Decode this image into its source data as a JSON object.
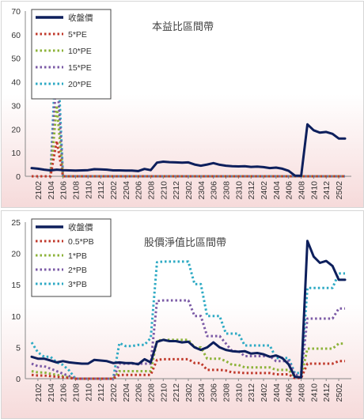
{
  "charts": [
    {
      "type": "line",
      "title": "本益比區間帶",
      "ylim": [
        0,
        70
      ],
      "yticks": [
        0,
        10,
        20,
        30,
        40,
        50,
        60,
        70
      ],
      "xtick_labels": [
        "2102",
        "2104",
        "2106",
        "2108",
        "2110",
        "2112",
        "2202",
        "2204",
        "2206",
        "2208",
        "2210",
        "2212",
        "2302",
        "2304",
        "2306",
        "2308",
        "2310",
        "2312",
        "2402",
        "2404",
        "2406",
        "2408",
        "2410",
        "2412",
        "2502"
      ],
      "legend": [
        "收盤價",
        "5*PE",
        "10*PE",
        "15*PE",
        "20*PE"
      ],
      "colors": [
        "#0d1f5c",
        "#c0392b",
        "#8db33a",
        "#7b5aa6",
        "#2eaac4"
      ],
      "series": [
        {
          "name": "收盤價",
          "values": [
            3.5,
            3.2,
            2.8,
            2.5,
            2.8,
            2.6,
            2.5,
            2.4,
            2.5,
            2.6,
            3.0,
            2.9,
            2.8,
            2.5,
            2.5,
            2.4,
            2.4,
            2.2,
            3.1,
            2.6,
            5.8,
            6.2,
            6.0,
            5.9,
            5.8,
            5.9,
            5.0,
            4.5,
            5.0,
            5.6,
            4.9,
            4.5,
            4.3,
            4.2,
            4.3,
            4.0,
            4.1,
            3.9,
            3.5,
            3.7,
            3.2,
            2.3,
            0.3,
            0.2,
            22.0,
            19.5,
            18.5,
            18.8,
            18.0,
            16.0,
            16.0
          ]
        },
        {
          "name": "5*PE",
          "values": [
            0,
            0,
            0,
            0,
            15,
            0,
            0,
            0,
            0,
            0,
            0,
            0,
            0,
            0,
            0,
            0,
            0,
            0,
            0,
            0,
            0,
            0,
            0,
            0,
            0,
            0,
            0,
            0,
            0,
            0,
            0,
            0,
            0,
            0,
            0,
            0,
            0,
            0,
            0,
            0,
            0,
            0,
            0,
            0,
            0,
            0,
            0,
            0,
            0,
            0,
            0
          ]
        },
        {
          "name": "10*PE",
          "values": [
            0,
            0,
            0,
            0,
            30,
            0,
            0,
            0,
            0,
            0,
            0,
            0,
            0,
            0,
            0,
            0,
            0,
            0,
            0,
            0,
            0,
            0,
            0,
            0,
            0,
            0,
            0,
            0,
            0,
            0,
            0,
            0,
            0,
            0,
            0,
            0,
            0,
            0,
            0,
            0,
            0,
            0,
            0,
            0,
            0,
            0,
            0,
            0,
            0,
            0,
            0
          ]
        },
        {
          "name": "15*PE",
          "values": [
            0,
            0,
            0,
            0,
            45,
            0,
            0,
            0,
            0,
            0,
            0,
            0,
            0,
            0,
            0,
            0,
            0,
            0,
            0,
            0,
            0,
            0,
            0,
            0,
            0,
            0,
            0,
            0,
            0,
            0,
            0,
            0,
            0,
            0,
            0,
            0,
            0,
            0,
            0,
            0,
            0,
            0,
            0,
            0,
            0,
            0,
            0,
            0,
            0,
            0,
            0
          ]
        },
        {
          "name": "20*PE",
          "values": [
            0,
            0,
            0,
            0,
            60,
            0,
            0,
            0,
            0,
            0,
            0,
            0,
            0,
            0,
            0,
            0,
            0,
            0,
            0,
            0,
            0,
            0,
            0,
            0,
            0,
            0,
            0,
            0,
            0,
            0,
            0,
            0,
            0,
            0,
            0,
            0,
            0,
            0,
            0,
            0,
            0,
            0,
            0,
            0,
            0,
            0,
            0,
            0,
            0,
            0,
            0
          ]
        }
      ]
    },
    {
      "type": "line",
      "title": "股價淨值比區間帶",
      "ylim": [
        0,
        25
      ],
      "yticks": [
        0,
        5,
        10,
        15,
        20,
        25
      ],
      "xtick_labels": [
        "2102",
        "2104",
        "2106",
        "2108",
        "2110",
        "2112",
        "2202",
        "2204",
        "2206",
        "2208",
        "2210",
        "2212",
        "2302",
        "2304",
        "2306",
        "2308",
        "2310",
        "2312",
        "2402",
        "2404",
        "2406",
        "2408",
        "2410",
        "2412",
        "2502"
      ],
      "legend": [
        "收盤價",
        "0.5*PB",
        "1*PB",
        "2*PB",
        "3*PB"
      ],
      "colors": [
        "#0d1f5c",
        "#c0392b",
        "#8db33a",
        "#7b5aa6",
        "#2eaac4"
      ],
      "series": [
        {
          "name": "收盤價",
          "values": [
            3.5,
            3.2,
            3.2,
            2.9,
            2.6,
            2.8,
            2.6,
            2.5,
            2.4,
            2.4,
            3.0,
            2.9,
            2.8,
            2.5,
            2.6,
            2.5,
            2.5,
            2.3,
            3.1,
            2.6,
            5.9,
            6.2,
            6.0,
            6.0,
            5.8,
            5.9,
            5.0,
            4.6,
            5.0,
            5.8,
            5.0,
            4.6,
            4.4,
            4.3,
            4.4,
            4.0,
            4.1,
            3.9,
            3.5,
            3.7,
            3.3,
            2.3,
            0.3,
            0.2,
            22.0,
            19.5,
            18.5,
            18.8,
            18.0,
            15.8,
            15.8
          ]
        },
        {
          "name": "0.5*PB",
          "values": [
            0.6,
            0.5,
            0.5,
            0.4,
            0.3,
            0.2,
            0.1,
            0.0,
            0.0,
            0.0,
            0.0,
            0.0,
            0.0,
            0.0,
            0.6,
            0.6,
            0.6,
            0.6,
            0.6,
            0.6,
            3.0,
            3.1,
            3.1,
            3.1,
            3.1,
            3.1,
            2.5,
            2.5,
            1.4,
            1.4,
            1.4,
            1.3,
            1.0,
            1.0,
            0.9,
            0.9,
            0.9,
            0.9,
            0.9,
            0.7,
            0.7,
            0.7,
            0.1,
            0.1,
            2.4,
            2.4,
            2.4,
            2.4,
            2.4,
            2.8,
            2.8
          ]
        },
        {
          "name": "1*PB",
          "values": [
            1.2,
            1.0,
            1.0,
            0.8,
            0.6,
            0.4,
            0.2,
            0.0,
            0.0,
            0.0,
            0.0,
            0.0,
            0.0,
            0.0,
            1.2,
            1.2,
            1.2,
            1.2,
            1.2,
            1.2,
            6.1,
            6.2,
            6.2,
            6.2,
            6.2,
            6.2,
            5.0,
            5.0,
            3.2,
            3.2,
            3.2,
            2.8,
            2.2,
            2.2,
            1.8,
            1.8,
            1.8,
            1.8,
            1.8,
            1.4,
            1.4,
            1.4,
            0.3,
            0.3,
            4.8,
            4.8,
            4.8,
            4.8,
            4.8,
            5.6,
            5.6
          ]
        },
        {
          "name": "2*PB",
          "values": [
            2.4,
            2.0,
            2.0,
            1.6,
            1.2,
            0.8,
            0.4,
            0.0,
            0.0,
            0.0,
            0.0,
            0.0,
            0.0,
            0.0,
            2.4,
            2.4,
            2.4,
            2.4,
            2.4,
            2.4,
            12.4,
            12.5,
            12.5,
            12.5,
            12.5,
            12.5,
            10.0,
            10.0,
            6.8,
            6.8,
            6.8,
            5.6,
            4.4,
            4.4,
            3.6,
            3.6,
            3.6,
            3.6,
            3.6,
            2.8,
            2.8,
            2.8,
            0.6,
            0.6,
            9.6,
            9.6,
            9.6,
            9.6,
            9.6,
            11.2,
            11.2
          ]
        },
        {
          "name": "3*PB",
          "values": [
            5.8,
            4.2,
            3.5,
            3.5,
            2.6,
            2.2,
            1.3,
            0.0,
            0.0,
            0.0,
            0.0,
            0.0,
            0.0,
            0.0,
            5.7,
            5.2,
            5.2,
            5.4,
            5.4,
            6.5,
            18.6,
            18.7,
            18.7,
            18.7,
            18.7,
            18.7,
            15.1,
            15.1,
            10.0,
            10.0,
            10.0,
            7.2,
            7.2,
            7.2,
            5.3,
            5.3,
            5.3,
            5.3,
            5.3,
            3.3,
            3.3,
            3.3,
            0.9,
            0.9,
            14.5,
            14.5,
            14.5,
            14.5,
            14.5,
            16.8,
            16.8
          ]
        }
      ]
    }
  ]
}
